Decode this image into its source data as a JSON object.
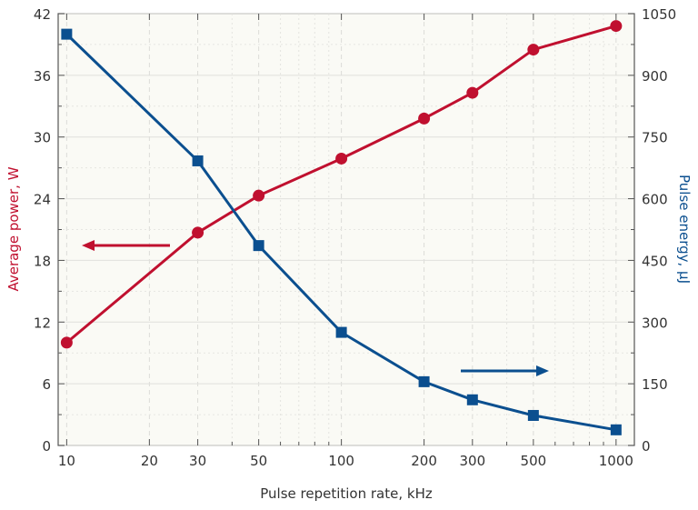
{
  "chart_data": {
    "type": "line",
    "xlabel": "Pulse repetition rate, kHz",
    "ylabel_left": "Average power, W",
    "ylabel_right": "Pulse energy, µJ",
    "x_scale": "log",
    "xlim": [
      9.31,
      1166
    ],
    "ylim_left": [
      0,
      42
    ],
    "ylim_right": [
      0,
      1050
    ],
    "x_ticks": [
      10,
      20,
      30,
      50,
      100,
      200,
      300,
      500,
      1000
    ],
    "y_ticks_left": [
      0,
      6,
      12,
      18,
      24,
      30,
      36,
      42
    ],
    "y_ticks_right": [
      0,
      150,
      300,
      450,
      600,
      750,
      900,
      1050
    ],
    "grid": true,
    "x": [
      10,
      30,
      50,
      100,
      200,
      300,
      500,
      1000
    ],
    "series": [
      {
        "axis": "left",
        "marker": "circle",
        "color": "#c0102f",
        "values": [
          10,
          20.7,
          24.3,
          27.9,
          31.8,
          34.3,
          38.5,
          40.8
        ]
      },
      {
        "axis": "right",
        "marker": "square",
        "color": "#0b4f8f",
        "values": [
          1000,
          692,
          486,
          275,
          155,
          111,
          73,
          38
        ]
      }
    ],
    "annotations": [
      {
        "type": "arrow",
        "direction": "left",
        "color": "#c0102f",
        "meaning": "left axis"
      },
      {
        "type": "arrow",
        "direction": "right",
        "color": "#0b4f8f",
        "meaning": "right axis"
      }
    ]
  }
}
